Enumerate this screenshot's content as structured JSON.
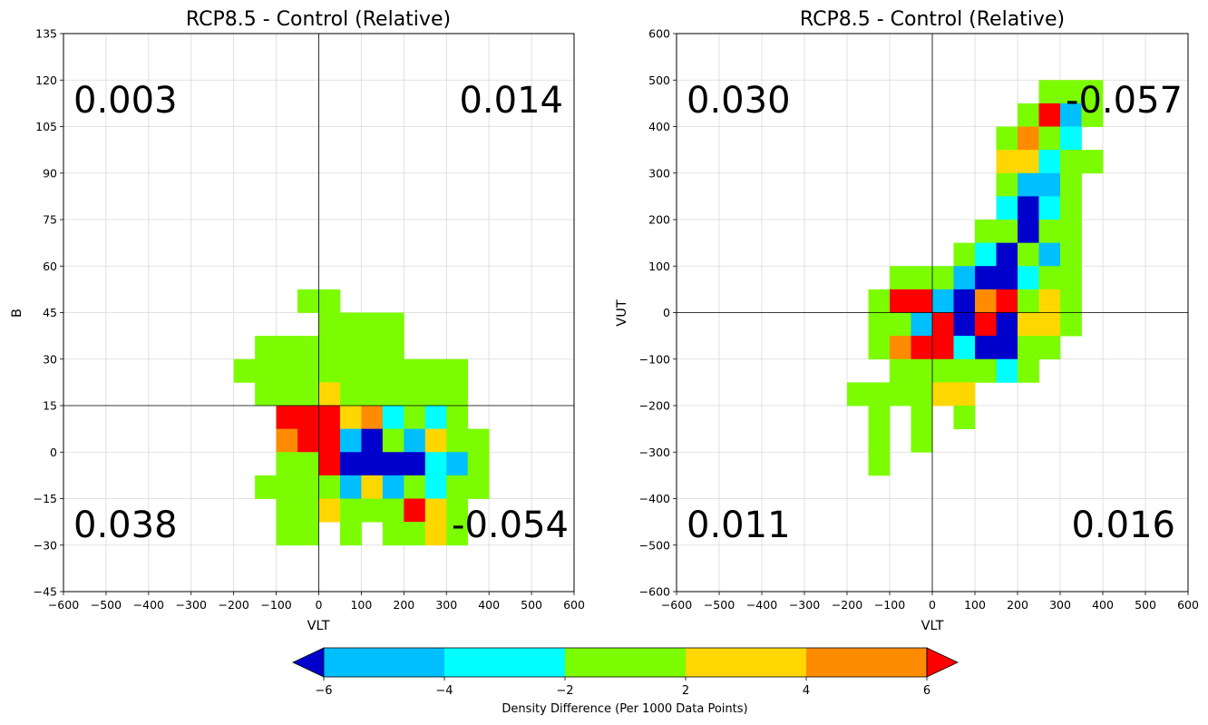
{
  "colors": {
    "bin_-6_-4": "#00bfff",
    "bin_-4_-2": "#00ffff",
    "bin_-2_2": "#7cfc00",
    "bin_2_4": "#ffd700",
    "bin_4_6": "#ff8c00",
    "under": "#0000cd",
    "over": "#ff0000"
  },
  "chart_data": [
    {
      "type": "heatmap",
      "title": "RCP8.5 - Control (Relative)",
      "xlabel": "VLT",
      "ylabel": "B",
      "xlim": [
        -600,
        600
      ],
      "ylim": [
        -45,
        135
      ],
      "xticks": [
        "−600",
        "−500",
        "−400",
        "−300",
        "−200",
        "−100",
        "0",
        "100",
        "200",
        "300",
        "400",
        "500",
        "600"
      ],
      "yticks": [
        "−45",
        "−30",
        "−15",
        "0",
        "15",
        "30",
        "45",
        "60",
        "75",
        "90",
        "105",
        "120",
        "135"
      ],
      "grid": true,
      "reference_lines": {
        "x": 0,
        "y": 15
      },
      "bin_size": {
        "x": 50,
        "y": 7.5
      },
      "quadrant_values": {
        "top_left": "0.003",
        "top_right": "0.014",
        "bottom_left": "0.038",
        "bottom_right": "-0.054"
      },
      "cells": [
        {
          "x": -50,
          "y": 45,
          "v": 0
        },
        {
          "x": 0,
          "y": 45,
          "v": 0
        },
        {
          "x": 0,
          "y": 37.5,
          "v": 0
        },
        {
          "x": 50,
          "y": 37.5,
          "v": 0
        },
        {
          "x": 100,
          "y": 37.5,
          "v": 0
        },
        {
          "x": 150,
          "y": 37.5,
          "v": 0
        },
        {
          "x": -150,
          "y": 30,
          "v": 0
        },
        {
          "x": -100,
          "y": 30,
          "v": 0
        },
        {
          "x": -50,
          "y": 30,
          "v": 0
        },
        {
          "x": 0,
          "y": 30,
          "v": 0
        },
        {
          "x": 50,
          "y": 30,
          "v": 0
        },
        {
          "x": 100,
          "y": 30,
          "v": 0
        },
        {
          "x": 150,
          "y": 30,
          "v": 0
        },
        {
          "x": -200,
          "y": 22.5,
          "v": 0
        },
        {
          "x": -150,
          "y": 22.5,
          "v": 0
        },
        {
          "x": -100,
          "y": 22.5,
          "v": 0
        },
        {
          "x": -50,
          "y": 22.5,
          "v": 0
        },
        {
          "x": 0,
          "y": 22.5,
          "v": 0
        },
        {
          "x": 50,
          "y": 22.5,
          "v": 0
        },
        {
          "x": 100,
          "y": 22.5,
          "v": 0
        },
        {
          "x": 150,
          "y": 22.5,
          "v": 0
        },
        {
          "x": 200,
          "y": 22.5,
          "v": 0
        },
        {
          "x": 250,
          "y": 22.5,
          "v": 0
        },
        {
          "x": 300,
          "y": 22.5,
          "v": 0
        },
        {
          "x": -150,
          "y": 15,
          "v": 0
        },
        {
          "x": -100,
          "y": 15,
          "v": 0
        },
        {
          "x": -50,
          "y": 15,
          "v": 0
        },
        {
          "x": 0,
          "y": 15,
          "v": 3
        },
        {
          "x": 50,
          "y": 15,
          "v": 0
        },
        {
          "x": 100,
          "y": 15,
          "v": 0
        },
        {
          "x": 150,
          "y": 15,
          "v": 0
        },
        {
          "x": 200,
          "y": 15,
          "v": 0
        },
        {
          "x": 250,
          "y": 15,
          "v": 0
        },
        {
          "x": 300,
          "y": 15,
          "v": 0
        },
        {
          "x": -100,
          "y": 7.5,
          "v": 7
        },
        {
          "x": -50,
          "y": 7.5,
          "v": 7
        },
        {
          "x": 0,
          "y": 7.5,
          "v": 7
        },
        {
          "x": 50,
          "y": 7.5,
          "v": 3
        },
        {
          "x": 100,
          "y": 7.5,
          "v": 5
        },
        {
          "x": 150,
          "y": 7.5,
          "v": -3
        },
        {
          "x": 200,
          "y": 7.5,
          "v": 0
        },
        {
          "x": 250,
          "y": 7.5,
          "v": -3
        },
        {
          "x": 300,
          "y": 7.5,
          "v": 0
        },
        {
          "x": -100,
          "y": 0,
          "v": 5
        },
        {
          "x": -50,
          "y": 0,
          "v": 7
        },
        {
          "x": 0,
          "y": 0,
          "v": 7
        },
        {
          "x": 50,
          "y": 0,
          "v": -5
        },
        {
          "x": 100,
          "y": 0,
          "v": -7
        },
        {
          "x": 150,
          "y": 0,
          "v": 0
        },
        {
          "x": 200,
          "y": 0,
          "v": -5
        },
        {
          "x": 250,
          "y": 0,
          "v": 3
        },
        {
          "x": 300,
          "y": 0,
          "v": 0
        },
        {
          "x": 350,
          "y": 0,
          "v": 0
        },
        {
          "x": -100,
          "y": -7.5,
          "v": 0
        },
        {
          "x": -50,
          "y": -7.5,
          "v": 0
        },
        {
          "x": 0,
          "y": -7.5,
          "v": 7
        },
        {
          "x": 50,
          "y": -7.5,
          "v": -7
        },
        {
          "x": 100,
          "y": -7.5,
          "v": -7
        },
        {
          "x": 150,
          "y": -7.5,
          "v": -7
        },
        {
          "x": 200,
          "y": -7.5,
          "v": -7
        },
        {
          "x": 250,
          "y": -7.5,
          "v": -3
        },
        {
          "x": 300,
          "y": -7.5,
          "v": -5
        },
        {
          "x": 350,
          "y": -7.5,
          "v": 0
        },
        {
          "x": -150,
          "y": -15,
          "v": 0
        },
        {
          "x": -100,
          "y": -15,
          "v": 0
        },
        {
          "x": -50,
          "y": -15,
          "v": 0
        },
        {
          "x": 0,
          "y": -15,
          "v": 0
        },
        {
          "x": 50,
          "y": -15,
          "v": -5
        },
        {
          "x": 100,
          "y": -15,
          "v": 3
        },
        {
          "x": 150,
          "y": -15,
          "v": -5
        },
        {
          "x": 200,
          "y": -15,
          "v": 0
        },
        {
          "x": 250,
          "y": -15,
          "v": -3
        },
        {
          "x": 300,
          "y": -15,
          "v": 0
        },
        {
          "x": 350,
          "y": -15,
          "v": 0
        },
        {
          "x": -100,
          "y": -22.5,
          "v": 0
        },
        {
          "x": -50,
          "y": -22.5,
          "v": 0
        },
        {
          "x": 0,
          "y": -22.5,
          "v": 3
        },
        {
          "x": 50,
          "y": -22.5,
          "v": 0
        },
        {
          "x": 100,
          "y": -22.5,
          "v": 0
        },
        {
          "x": 150,
          "y": -22.5,
          "v": 0
        },
        {
          "x": 200,
          "y": -22.5,
          "v": 7
        },
        {
          "x": 250,
          "y": -22.5,
          "v": 3
        },
        {
          "x": 300,
          "y": -22.5,
          "v": 0
        },
        {
          "x": -100,
          "y": -30,
          "v": 0
        },
        {
          "x": -50,
          "y": -30,
          "v": 0
        },
        {
          "x": 50,
          "y": -30,
          "v": 0
        },
        {
          "x": 150,
          "y": -30,
          "v": 0
        },
        {
          "x": 200,
          "y": -30,
          "v": 0
        },
        {
          "x": 250,
          "y": -30,
          "v": 3
        },
        {
          "x": 300,
          "y": -30,
          "v": 0
        }
      ]
    },
    {
      "type": "heatmap",
      "title": "RCP8.5 - Control (Relative)",
      "xlabel": "VLT",
      "ylabel": "VUT",
      "xlim": [
        -600,
        600
      ],
      "ylim": [
        -600,
        600
      ],
      "xticks": [
        "−600",
        "−500",
        "−400",
        "−300",
        "−200",
        "−100",
        "0",
        "100",
        "200",
        "300",
        "400",
        "500",
        "600"
      ],
      "yticks": [
        "−600",
        "−500",
        "−400",
        "−300",
        "−200",
        "−100",
        "0",
        "100",
        "200",
        "300",
        "400",
        "500",
        "600"
      ],
      "grid": true,
      "reference_lines": {
        "x": 0,
        "y": 0
      },
      "bin_size": {
        "x": 50,
        "y": 50
      },
      "quadrant_values": {
        "top_left": "0.030",
        "top_right": "-0.057",
        "bottom_left": "0.011",
        "bottom_right": "0.016"
      },
      "cells": [
        {
          "x": 250,
          "y": 450,
          "v": 0
        },
        {
          "x": 300,
          "y": 450,
          "v": 0
        },
        {
          "x": 350,
          "y": 450,
          "v": 0
        },
        {
          "x": 200,
          "y": 400,
          "v": 0
        },
        {
          "x": 250,
          "y": 400,
          "v": 7
        },
        {
          "x": 300,
          "y": 400,
          "v": -5
        },
        {
          "x": 350,
          "y": 400,
          "v": 0
        },
        {
          "x": 150,
          "y": 350,
          "v": 0
        },
        {
          "x": 200,
          "y": 350,
          "v": 5
        },
        {
          "x": 250,
          "y": 350,
          "v": 0
        },
        {
          "x": 300,
          "y": 350,
          "v": -3
        },
        {
          "x": 150,
          "y": 300,
          "v": 3
        },
        {
          "x": 200,
          "y": 300,
          "v": 3
        },
        {
          "x": 250,
          "y": 300,
          "v": -3
        },
        {
          "x": 300,
          "y": 300,
          "v": 0
        },
        {
          "x": 350,
          "y": 300,
          "v": 0
        },
        {
          "x": 150,
          "y": 250,
          "v": 0
        },
        {
          "x": 200,
          "y": 250,
          "v": -5
        },
        {
          "x": 250,
          "y": 250,
          "v": -5
        },
        {
          "x": 300,
          "y": 250,
          "v": 0
        },
        {
          "x": 150,
          "y": 200,
          "v": -3
        },
        {
          "x": 200,
          "y": 200,
          "v": -7
        },
        {
          "x": 250,
          "y": 200,
          "v": -3
        },
        {
          "x": 300,
          "y": 200,
          "v": 0
        },
        {
          "x": 100,
          "y": 150,
          "v": 0
        },
        {
          "x": 150,
          "y": 150,
          "v": 0
        },
        {
          "x": 200,
          "y": 150,
          "v": -7
        },
        {
          "x": 250,
          "y": 150,
          "v": 0
        },
        {
          "x": 300,
          "y": 150,
          "v": 0
        },
        {
          "x": 50,
          "y": 100,
          "v": 0
        },
        {
          "x": 100,
          "y": 100,
          "v": -3
        },
        {
          "x": 150,
          "y": 100,
          "v": -7
        },
        {
          "x": 200,
          "y": 100,
          "v": 0
        },
        {
          "x": 250,
          "y": 100,
          "v": -5
        },
        {
          "x": 300,
          "y": 100,
          "v": 0
        },
        {
          "x": -100,
          "y": 50,
          "v": 0
        },
        {
          "x": -50,
          "y": 50,
          "v": 0
        },
        {
          "x": 0,
          "y": 50,
          "v": 0
        },
        {
          "x": 50,
          "y": 50,
          "v": -5
        },
        {
          "x": 100,
          "y": 50,
          "v": -7
        },
        {
          "x": 150,
          "y": 50,
          "v": -7
        },
        {
          "x": 200,
          "y": 50,
          "v": -3
        },
        {
          "x": 250,
          "y": 50,
          "v": 0
        },
        {
          "x": 300,
          "y": 50,
          "v": 0
        },
        {
          "x": -150,
          "y": 0,
          "v": 0
        },
        {
          "x": -100,
          "y": 0,
          "v": 7
        },
        {
          "x": -50,
          "y": 0,
          "v": 7
        },
        {
          "x": 0,
          "y": 0,
          "v": -5
        },
        {
          "x": 50,
          "y": 0,
          "v": -7
        },
        {
          "x": 100,
          "y": 0,
          "v": 5
        },
        {
          "x": 150,
          "y": 0,
          "v": 7
        },
        {
          "x": 200,
          "y": 0,
          "v": 0
        },
        {
          "x": 250,
          "y": 0,
          "v": 3
        },
        {
          "x": 300,
          "y": 0,
          "v": 0
        },
        {
          "x": -150,
          "y": -50,
          "v": 0
        },
        {
          "x": -100,
          "y": -50,
          "v": 0
        },
        {
          "x": -50,
          "y": -50,
          "v": -5
        },
        {
          "x": 0,
          "y": -50,
          "v": 7
        },
        {
          "x": 50,
          "y": -50,
          "v": -7
        },
        {
          "x": 100,
          "y": -50,
          "v": 7
        },
        {
          "x": 150,
          "y": -50,
          "v": -7
        },
        {
          "x": 200,
          "y": -50,
          "v": 3
        },
        {
          "x": 250,
          "y": -50,
          "v": 3
        },
        {
          "x": 300,
          "y": -50,
          "v": 0
        },
        {
          "x": -150,
          "y": -100,
          "v": 0
        },
        {
          "x": -100,
          "y": -100,
          "v": 5
        },
        {
          "x": -50,
          "y": -100,
          "v": 7
        },
        {
          "x": 0,
          "y": -100,
          "v": 7
        },
        {
          "x": 50,
          "y": -100,
          "v": -3
        },
        {
          "x": 100,
          "y": -100,
          "v": -7
        },
        {
          "x": 150,
          "y": -100,
          "v": -7
        },
        {
          "x": 200,
          "y": -100,
          "v": 0
        },
        {
          "x": 250,
          "y": -100,
          "v": 0
        },
        {
          "x": -100,
          "y": -150,
          "v": 0
        },
        {
          "x": -50,
          "y": -150,
          "v": 0
        },
        {
          "x": 0,
          "y": -150,
          "v": 0
        },
        {
          "x": 50,
          "y": -150,
          "v": 0
        },
        {
          "x": 100,
          "y": -150,
          "v": 0
        },
        {
          "x": 150,
          "y": -150,
          "v": -3
        },
        {
          "x": 200,
          "y": -150,
          "v": 0
        },
        {
          "x": -200,
          "y": -200,
          "v": 0
        },
        {
          "x": -150,
          "y": -200,
          "v": 0
        },
        {
          "x": -100,
          "y": -200,
          "v": 0
        },
        {
          "x": -50,
          "y": -200,
          "v": 0
        },
        {
          "x": 0,
          "y": -200,
          "v": 3
        },
        {
          "x": 50,
          "y": -200,
          "v": 3
        },
        {
          "x": -150,
          "y": -250,
          "v": 0
        },
        {
          "x": -50,
          "y": -250,
          "v": 0
        },
        {
          "x": 50,
          "y": -250,
          "v": 0
        },
        {
          "x": -150,
          "y": -300,
          "v": 0
        },
        {
          "x": -50,
          "y": -300,
          "v": 0
        },
        {
          "x": -150,
          "y": -350,
          "v": 0
        }
      ]
    }
  ],
  "colorbar": {
    "label": "Density Difference (Per 1000 Data Points)",
    "boundaries": [
      -6,
      -4,
      -2,
      2,
      4,
      6
    ],
    "tick_labels": [
      "−6",
      "−4",
      "−2",
      "2",
      "4",
      "6"
    ],
    "extend": "both"
  }
}
